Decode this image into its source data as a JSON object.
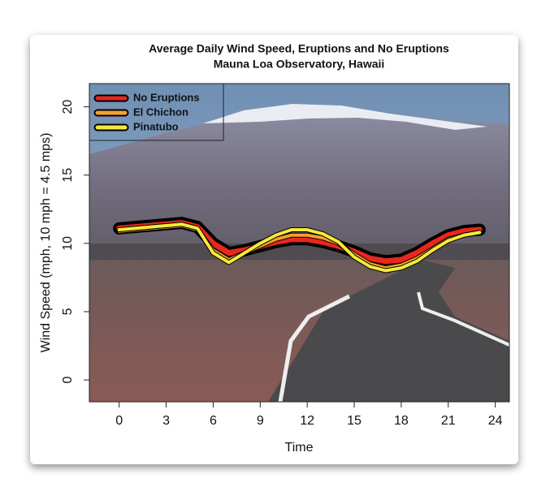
{
  "chart_data": {
    "type": "line",
    "title": "Average Daily Wind Speed, Eruptions and No Eruptions",
    "subtitle": "Mauna Loa Observatory, Hawaii",
    "x_label": "Time",
    "y_label": "Wind Speed (mph, 10 mph = 4.5 mps)",
    "x": [
      0,
      1,
      2,
      3,
      4,
      5,
      6,
      7,
      8,
      9,
      10,
      11,
      12,
      13,
      14,
      15,
      16,
      17,
      18,
      19,
      20,
      21,
      22,
      23
    ],
    "series": [
      {
        "name": "No Eruptions",
        "color": "#e8271f",
        "values": [
          11.1,
          11.2,
          11.3,
          11.4,
          11.5,
          11.2,
          10.0,
          9.3,
          9.5,
          9.8,
          10.1,
          10.3,
          10.3,
          10.1,
          9.8,
          9.4,
          8.9,
          8.7,
          8.8,
          9.3,
          10.0,
          10.6,
          10.9,
          11.0
        ]
      },
      {
        "name": "El Chichon",
        "color": "#f5a030",
        "values": [
          10.9,
          11.0,
          11.1,
          11.2,
          11.3,
          11.0,
          9.5,
          8.8,
          9.3,
          9.8,
          10.3,
          10.6,
          10.6,
          10.4,
          10.0,
          9.2,
          8.5,
          8.2,
          8.4,
          8.9,
          9.6,
          10.3,
          10.6,
          10.8
        ]
      },
      {
        "name": "Pinatubo",
        "color": "#f5ea3a",
        "values": [
          11.0,
          11.1,
          11.2,
          11.3,
          11.4,
          11.1,
          9.3,
          8.6,
          9.3,
          10.0,
          10.6,
          11.0,
          11.0,
          10.7,
          10.1,
          9.0,
          8.3,
          8.0,
          8.2,
          8.7,
          9.5,
          10.2,
          10.6,
          10.8
        ]
      }
    ],
    "xlim": [
      -1.9,
      24.9
    ],
    "xticks": [
      0,
      3,
      6,
      9,
      12,
      15,
      18,
      21,
      24
    ],
    "ylim": [
      -1.6,
      21.7
    ],
    "yticks": [
      0,
      5,
      10,
      15,
      20
    ],
    "legend": "topleft"
  }
}
